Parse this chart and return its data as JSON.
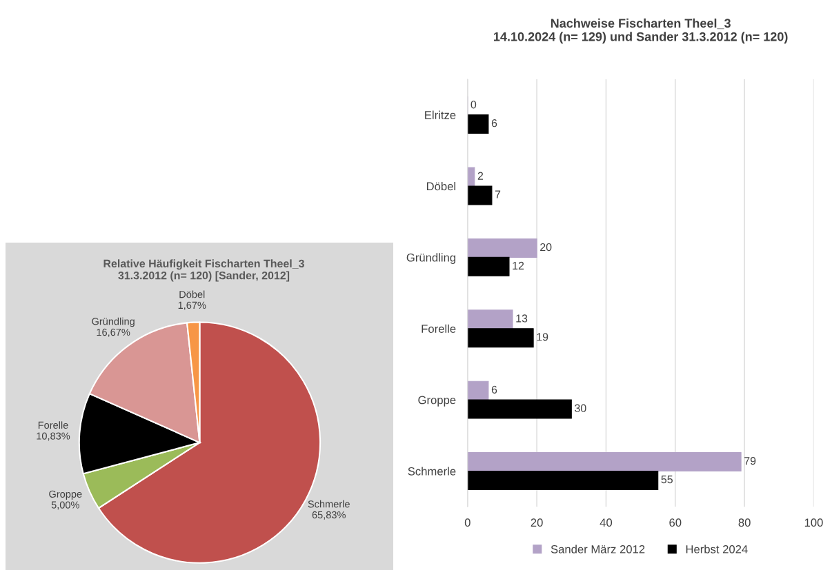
{
  "chart_data": [
    {
      "type": "pie",
      "title": "Relative Häufigkeit Fischarten Theel_3\n31.3.2012 (n= 120) [Sander, 2012]",
      "categories": [
        "Schmerle",
        "Groppe",
        "Forelle",
        "Gründling",
        "Döbel"
      ],
      "values": [
        65.83,
        5.0,
        10.83,
        16.67,
        1.67
      ],
      "value_labels": [
        "65,83%",
        "5,00%",
        "10,83%",
        "16,67%",
        "1,67%"
      ],
      "colors": [
        "#c0504d",
        "#9bbb59",
        "#000000",
        "#d99694",
        "#f79646"
      ]
    },
    {
      "type": "bar",
      "orientation": "horizontal",
      "title": "Nachweise Fischarten Theel_3\n14.10.2024 (n= 129) und Sander 31.3.2012 (n= 120)",
      "categories": [
        "Elritze",
        "Döbel",
        "Gründling",
        "Forelle",
        "Groppe",
        "Schmerle"
      ],
      "series": [
        {
          "name": "Sander März 2012",
          "color": "#b3a2c7",
          "values": [
            0,
            2,
            20,
            13,
            6,
            79
          ]
        },
        {
          "name": "Herbst 2024",
          "color": "#000000",
          "values": [
            6,
            7,
            12,
            19,
            30,
            55
          ]
        }
      ],
      "xlim": [
        0,
        100
      ],
      "xticks": [
        0,
        20,
        40,
        60,
        80,
        100
      ],
      "grid": "x",
      "legend": "bottom",
      "data_labels": true
    }
  ]
}
